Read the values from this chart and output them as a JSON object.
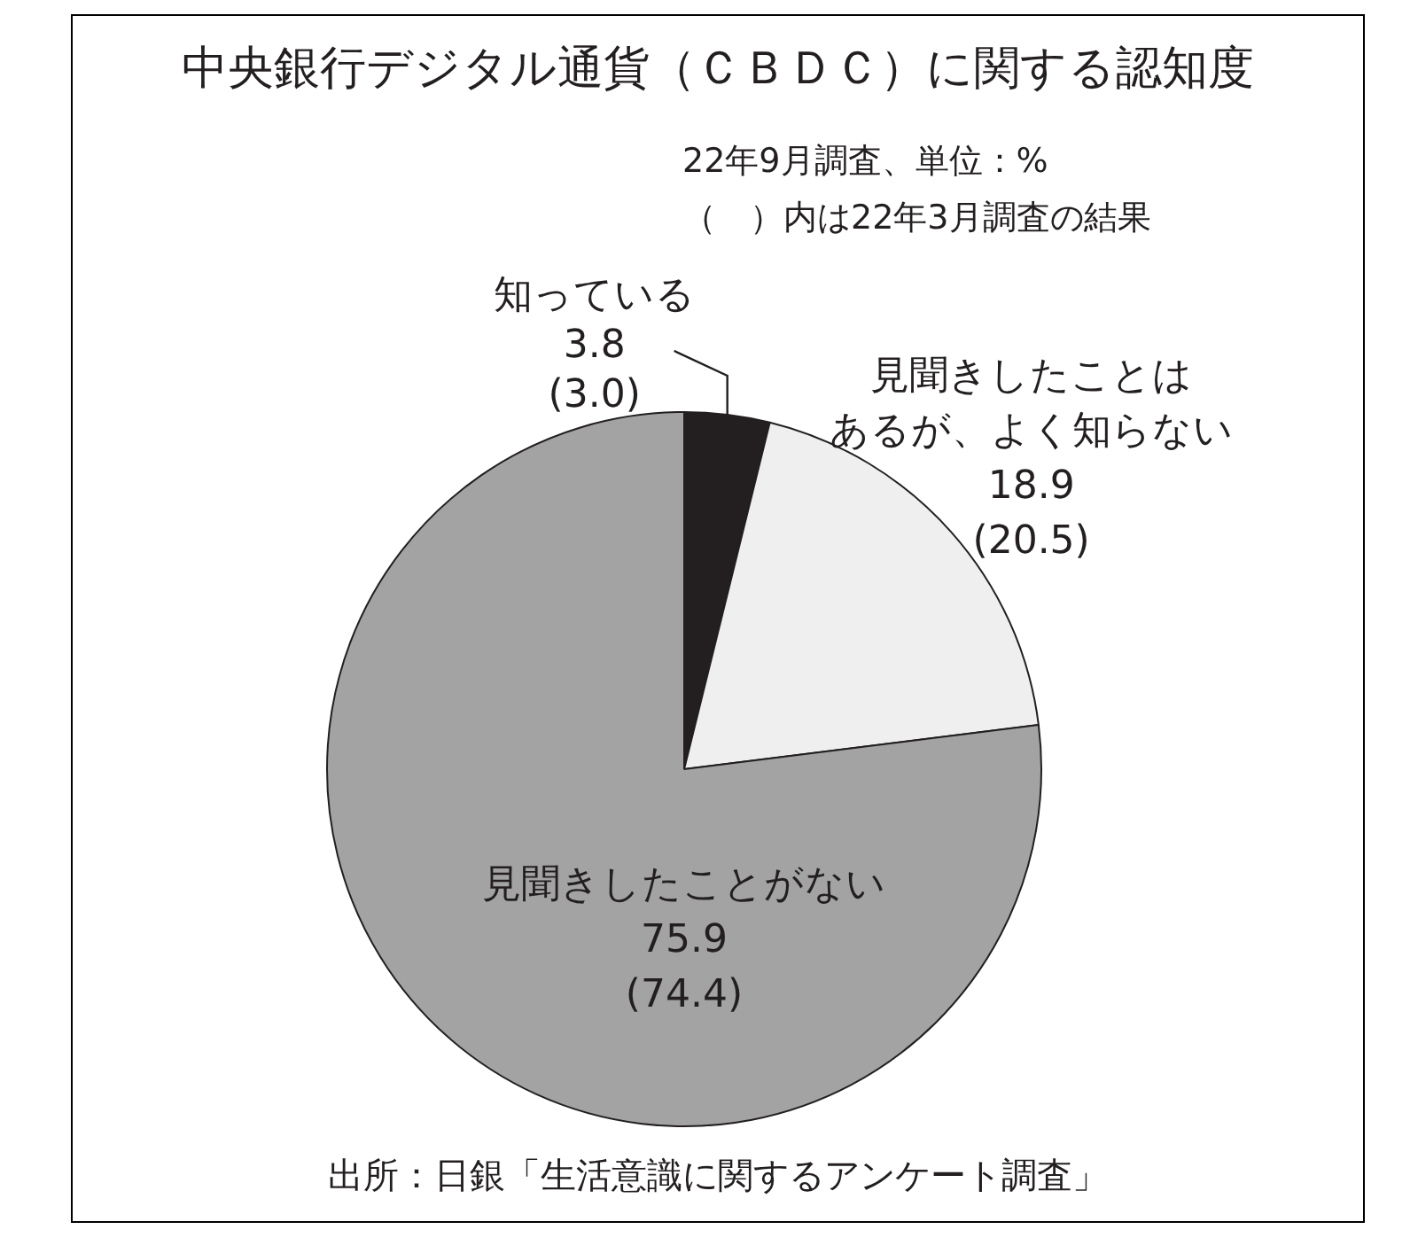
{
  "chart_data": {
    "type": "pie",
    "title": "中央銀行デジタル通貨（ＣＢＤＣ）に関する認知度",
    "subtitle": "22年9月調査、単位：%",
    "categories": [
      "知っている",
      "見聞きしたことはあるが、よく知らない",
      "見聞きしたことがない"
    ],
    "values": [
      3.8,
      18.9,
      75.9
    ],
    "colors": [
      "#231f20",
      "#efefef",
      "#a3a3a3"
    ],
    "value_labels": [
      "3.8\n(3.0)",
      "18.9\n(20.5)",
      "75.9\n(74.4)"
    ],
    "legend": false,
    "annotations": [
      "（　）内は22年3月調査の結果",
      "出所：日銀「生活意識に関するアンケート調査」"
    ]
  }
}
